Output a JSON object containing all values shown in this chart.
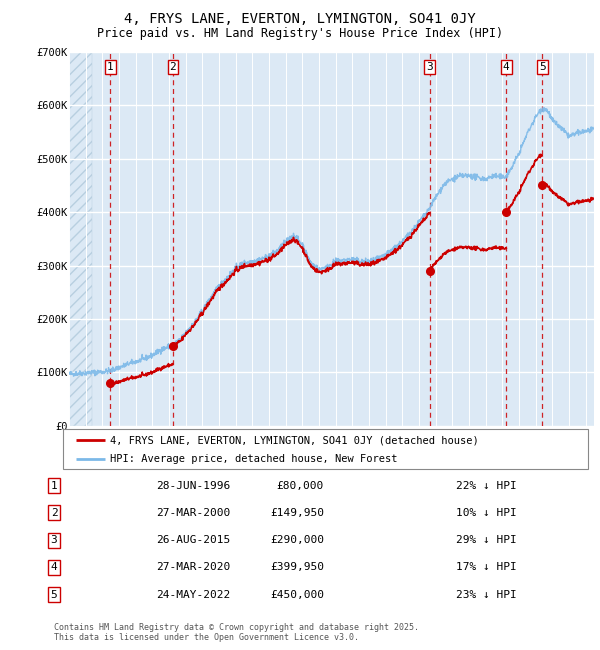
{
  "title": "4, FRYS LANE, EVERTON, LYMINGTON, SO41 0JY",
  "subtitle": "Price paid vs. HM Land Registry's House Price Index (HPI)",
  "legend_line1": "4, FRYS LANE, EVERTON, LYMINGTON, SO41 0JY (detached house)",
  "legend_line2": "HPI: Average price, detached house, New Forest",
  "footer": "Contains HM Land Registry data © Crown copyright and database right 2025.\nThis data is licensed under the Open Government Licence v3.0.",
  "sales": [
    {
      "num": 1,
      "date_yr": 1996.486,
      "price": 80000,
      "label": "28-JUN-1996",
      "pct": "22% ↓ HPI"
    },
    {
      "num": 2,
      "date_yr": 2000.236,
      "price": 149950,
      "label": "27-MAR-2000",
      "pct": "10% ↓ HPI"
    },
    {
      "num": 3,
      "date_yr": 2015.652,
      "price": 290000,
      "label": "26-AUG-2015",
      "pct": "29% ↓ HPI"
    },
    {
      "num": 4,
      "date_yr": 2020.236,
      "price": 399950,
      "label": "27-MAR-2020",
      "pct": "17% ↓ HPI"
    },
    {
      "num": 5,
      "date_yr": 2022.393,
      "price": 450000,
      "label": "24-MAY-2022",
      "pct": "23% ↓ HPI"
    }
  ],
  "hpi_color": "#7cb9e8",
  "price_color": "#cc0000",
  "sale_dot_color": "#cc0000",
  "vline_color": "#cc0000",
  "box_color": "#cc0000",
  "bg_color": "#dce9f5",
  "hatch_color": "#b8cfe0",
  "grid_color": "#ffffff",
  "ylim": [
    0,
    700000
  ],
  "ylabel_vals": [
    0,
    100000,
    200000,
    300000,
    400000,
    500000,
    600000,
    700000
  ],
  "ylabel_strs": [
    "£0",
    "£100K",
    "£200K",
    "£300K",
    "£400K",
    "£500K",
    "£600K",
    "£700K"
  ],
  "xlim_start": 1994.0,
  "xlim_end": 2025.5,
  "hatch_end": 1995.4
}
